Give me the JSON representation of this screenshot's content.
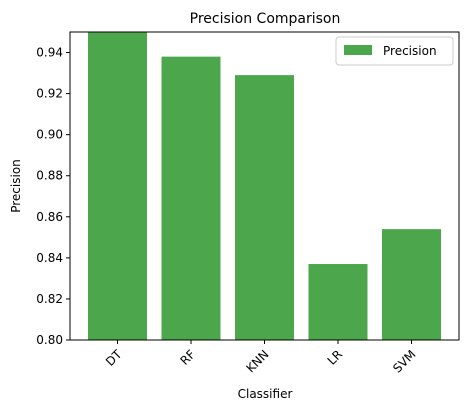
{
  "chart_data": {
    "type": "bar",
    "title": "Precision Comparison",
    "xlabel": "Classifier",
    "ylabel": "Precision",
    "categories": [
      "DT",
      "RF",
      "KNN",
      "LR",
      "SVM"
    ],
    "series": [
      {
        "name": "Precision",
        "values": [
          0.95,
          0.938,
          0.929,
          0.837,
          0.854
        ],
        "color": "#4ca64c"
      }
    ],
    "ylim": [
      0.8,
      0.95
    ],
    "yticks": [
      "0.80",
      "0.82",
      "0.84",
      "0.86",
      "0.88",
      "0.90",
      "0.92",
      "0.94"
    ],
    "xtick_rotation": 45,
    "grid": false,
    "legend": {
      "position": "top-right"
    }
  }
}
